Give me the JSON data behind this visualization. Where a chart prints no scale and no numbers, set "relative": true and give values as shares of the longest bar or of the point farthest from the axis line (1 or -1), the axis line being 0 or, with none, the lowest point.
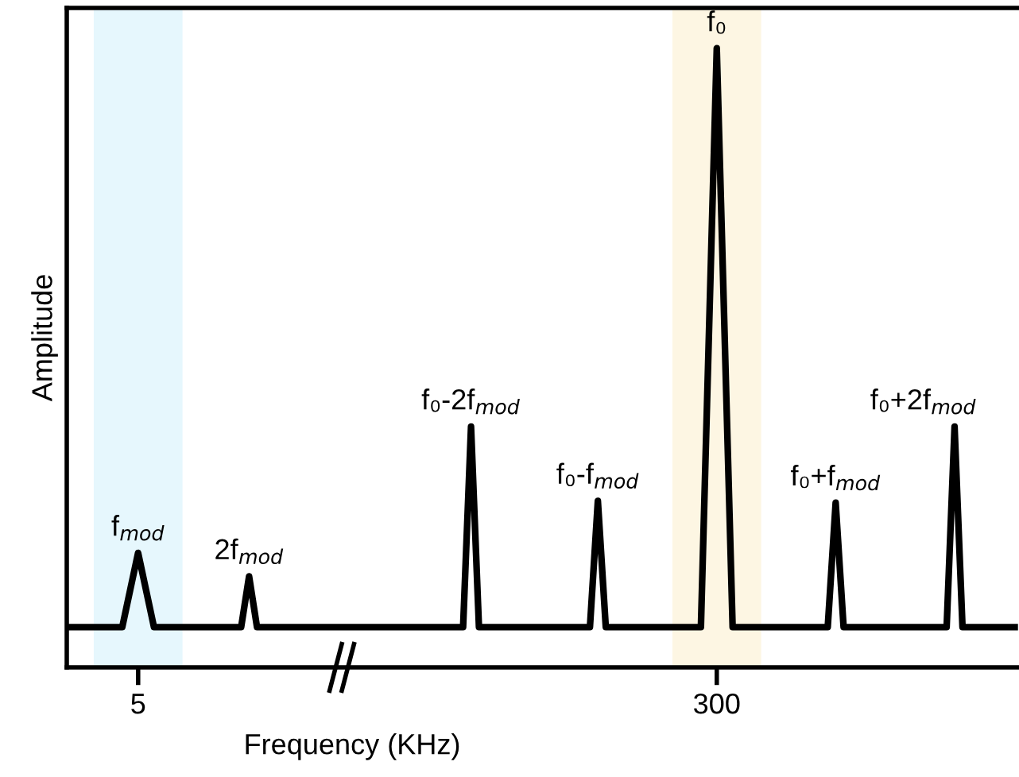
{
  "chart_data": {
    "type": "line",
    "relative": true,
    "ylabel": "Amplitude",
    "xlabel": "Frequency (KHz)",
    "grid": false,
    "legend": false,
    "marker": "none",
    "line_style": "solid",
    "tick_labels": "x",
    "categories": [
      null,
      null,
      null,
      null,
      null,
      null,
      null,
      null,
      null,
      "5",
      null,
      null,
      null,
      null,
      null,
      null,
      null,
      null,
      null,
      null,
      null,
      null,
      null,
      null,
      null,
      null,
      null,
      null,
      null,
      null,
      null,
      null,
      null,
      null,
      null,
      null,
      null,
      null,
      null,
      null,
      null,
      null,
      null,
      null,
      null,
      null,
      null,
      null,
      null,
      null,
      null,
      null,
      null,
      null,
      null,
      null,
      null,
      null,
      null,
      null,
      null,
      null,
      null,
      null,
      null,
      null,
      null,
      null,
      null,
      null,
      null,
      null,
      null,
      null,
      null,
      null,
      null,
      null,
      null,
      null,
      null,
      null,
      "300",
      null,
      null,
      null,
      null,
      null,
      null,
      null,
      null,
      null,
      null,
      null,
      null,
      null,
      null,
      null,
      null,
      null,
      null,
      null,
      null,
      null,
      null,
      null,
      null,
      null,
      null,
      null,
      null,
      null,
      null,
      null,
      null,
      null,
      null,
      null,
      null,
      null,
      null
    ],
    "series": [
      {
        "color": "#000000",
        "values": [
          0.065,
          0.065,
          0.065,
          0.065,
          0.065,
          0.065,
          0.065,
          0.065,
          0.125,
          0.185,
          0.125,
          0.065,
          0.065,
          0.065,
          0.065,
          0.065,
          0.065,
          0.065,
          0.065,
          0.065,
          0.065,
          0.065,
          0.065,
          0.147,
          0.065,
          0.065,
          0.065,
          0.065,
          0.065,
          0.065,
          0.065,
          0.065,
          0.065,
          0.065,
          0.065,
          0.065,
          0.065,
          0.065,
          0.065,
          0.065,
          0.065,
          0.065,
          0.065,
          0.065,
          0.065,
          0.065,
          0.065,
          0.065,
          0.065,
          0.065,
          0.065,
          0.389,
          0.065,
          0.065,
          0.065,
          0.065,
          0.065,
          0.065,
          0.065,
          0.065,
          0.065,
          0.065,
          0.065,
          0.065,
          0.065,
          0.065,
          0.065,
          0.269,
          0.065,
          0.065,
          0.065,
          0.065,
          0.065,
          0.065,
          0.065,
          0.065,
          0.065,
          0.065,
          0.065,
          0.065,
          0.065,
          0.533,
          1,
          0.533,
          0.065,
          0.065,
          0.065,
          0.065,
          0.065,
          0.065,
          0.065,
          0.065,
          0.065,
          0.065,
          0.065,
          0.065,
          0.065,
          0.266,
          0.065,
          0.065,
          0.065,
          0.065,
          0.065,
          0.065,
          0.065,
          0.065,
          0.065,
          0.065,
          0.065,
          0.065,
          0.065,
          0.065,
          0.389,
          0.065,
          0.065,
          0.065,
          0.065,
          0.065,
          0.065,
          0.065,
          0.065
        ]
      }
    ],
    "annotations": [
      "f$_{mod}$",
      "2f$_{mod}$",
      "f₀-2f$_{mod}$",
      "f₀-f$_{mod}$",
      "f₀",
      "f₀+f$_{mod}$",
      "f₀+2f$_{mod}$"
    ]
  }
}
